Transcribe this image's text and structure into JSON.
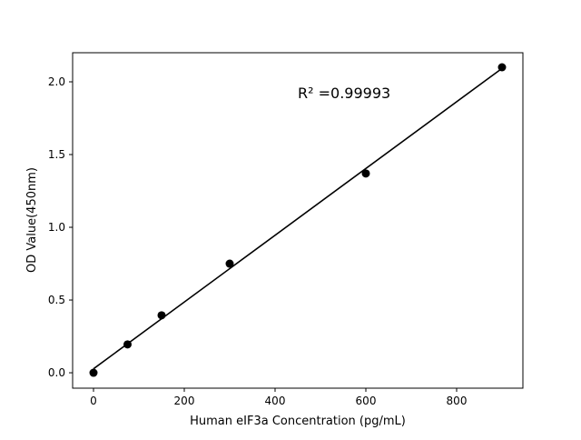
{
  "chart_data": {
    "type": "scatter",
    "title": "",
    "xlabel": "Human eIF3a Concentration (pg/mL)",
    "ylabel": "OD Value(450nm)",
    "xlim": [
      -46,
      946
    ],
    "ylim": [
      -0.106,
      2.2
    ],
    "xticks": [
      0,
      200,
      400,
      600,
      800
    ],
    "xtick_labels": [
      "0",
      "200",
      "400",
      "600",
      "800"
    ],
    "yticks": [
      0.0,
      0.5,
      1.0,
      1.5,
      2.0
    ],
    "ytick_labels": [
      "0.0",
      "0.5",
      "1.0",
      "1.5",
      "2.0"
    ],
    "grid": false,
    "series": [
      {
        "x": [
          0,
          75,
          150,
          300,
          600,
          900
        ],
        "y": [
          0.0,
          0.195,
          0.395,
          0.75,
          1.37,
          2.1
        ],
        "color": "#000000",
        "fit": "linear"
      }
    ],
    "annotation": "R² =0.99993"
  }
}
